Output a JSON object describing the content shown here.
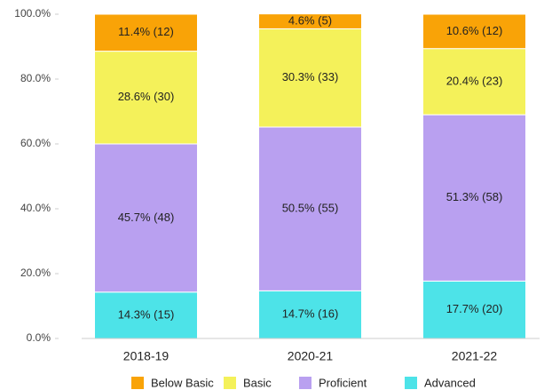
{
  "chart_data": {
    "type": "stacked_bar",
    "categories": [
      "2018-19",
      "2020-21",
      "2021-22"
    ],
    "series": [
      {
        "name": "Below Basic",
        "color": "#f9a307",
        "values": [
          11.4,
          4.6,
          10.6
        ],
        "value_labels": [
          "11.4% (12)",
          "4.6% (5)",
          "10.6% (12)"
        ]
      },
      {
        "name": "Basic",
        "color": "#f4f15a",
        "values": [
          28.6,
          30.3,
          20.4
        ],
        "value_labels": [
          "28.6% (30)",
          "30.3% (33)",
          "20.4% (23)"
        ]
      },
      {
        "name": "Proficient",
        "color": "#b9a0f0",
        "values": [
          45.7,
          50.5,
          51.3
        ],
        "value_labels": [
          "45.7% (48)",
          "50.5% (55)",
          "51.3% (58)"
        ]
      },
      {
        "name": "Advanced",
        "color": "#4de3e8",
        "values": [
          14.3,
          14.7,
          17.7
        ],
        "value_labels": [
          "14.3% (15)",
          "14.7% (16)",
          "17.7% (20)"
        ]
      }
    ],
    "ylim": [
      0,
      100
    ],
    "yticks": [
      {
        "value": 0,
        "label": "0.0%"
      },
      {
        "value": 20,
        "label": "20.0%"
      },
      {
        "value": 40,
        "label": "40.0%"
      },
      {
        "value": 60,
        "label": "60.0%"
      },
      {
        "value": 80,
        "label": "80.0%"
      },
      {
        "value": 100,
        "label": "100.0%"
      }
    ]
  }
}
